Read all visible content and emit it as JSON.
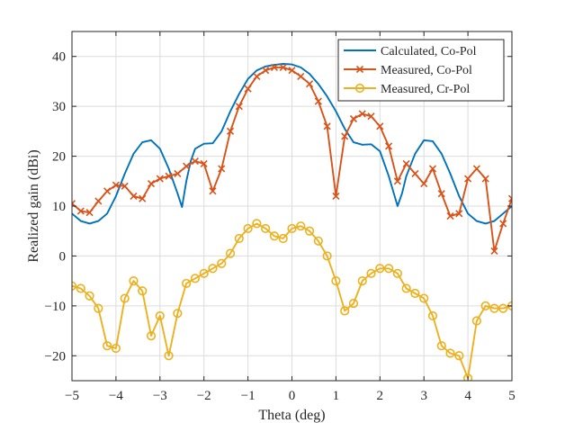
{
  "chart_data": {
    "type": "line",
    "title": "",
    "xlabel": "Theta (deg)",
    "ylabel": "Realized gain (dBi)",
    "xlim": [
      -5,
      5
    ],
    "ylim": [
      -25,
      45
    ],
    "xticks": [
      -5,
      -4,
      -3,
      -2,
      -1,
      0,
      1,
      2,
      3,
      4,
      5
    ],
    "yticks": [
      -20,
      -10,
      0,
      10,
      20,
      30,
      40
    ],
    "xtick_labels": [
      "−5",
      "−4",
      "−3",
      "−2",
      "−1",
      "0",
      "1",
      "2",
      "3",
      "4",
      "5"
    ],
    "ytick_labels": [
      "−20",
      "−10",
      "0",
      "10",
      "20",
      "30",
      "40"
    ],
    "grid": true,
    "legend_position": "top-right",
    "series": [
      {
        "name": "Calculated, Co-Pol",
        "color": "#0072BD",
        "marker": "none",
        "x": [
          -5.0,
          -4.8,
          -4.6,
          -4.4,
          -4.2,
          -4.0,
          -3.8,
          -3.6,
          -3.4,
          -3.2,
          -3.0,
          -2.8,
          -2.6,
          -2.5,
          -2.4,
          -2.3,
          -2.2,
          -2.0,
          -1.8,
          -1.6,
          -1.4,
          -1.2,
          -1.0,
          -0.8,
          -0.6,
          -0.4,
          -0.2,
          0.0,
          0.2,
          0.4,
          0.6,
          0.8,
          1.0,
          1.2,
          1.4,
          1.6,
          1.8,
          2.0,
          2.2,
          2.3,
          2.4,
          2.5,
          2.6,
          2.8,
          3.0,
          3.2,
          3.4,
          3.6,
          3.8,
          4.0,
          4.2,
          4.4,
          4.6,
          4.8,
          5.0
        ],
        "y": [
          8.5,
          7.0,
          6.5,
          7.0,
          8.5,
          12.0,
          16.5,
          20.5,
          22.8,
          23.2,
          21.5,
          17.5,
          12.5,
          9.8,
          15.0,
          19.0,
          21.5,
          22.5,
          22.6,
          25.0,
          29.0,
          32.5,
          35.5,
          37.2,
          38.0,
          38.3,
          38.5,
          38.4,
          37.8,
          36.5,
          34.5,
          32.0,
          29.0,
          25.5,
          22.8,
          22.3,
          22.4,
          21.0,
          16.0,
          13.0,
          10.0,
          12.5,
          16.0,
          20.5,
          23.2,
          23.0,
          20.5,
          16.5,
          12.0,
          8.5,
          7.0,
          6.5,
          7.0,
          8.5,
          10.0
        ]
      },
      {
        "name": "Measured, Co-Pol",
        "color": "#D95319",
        "marker": "x",
        "x": [
          -5.0,
          -4.8,
          -4.6,
          -4.4,
          -4.2,
          -4.0,
          -3.8,
          -3.6,
          -3.4,
          -3.2,
          -3.0,
          -2.8,
          -2.6,
          -2.4,
          -2.2,
          -2.0,
          -1.8,
          -1.6,
          -1.4,
          -1.2,
          -1.0,
          -0.8,
          -0.6,
          -0.4,
          -0.2,
          0.0,
          0.2,
          0.4,
          0.6,
          0.8,
          1.0,
          1.2,
          1.4,
          1.6,
          1.8,
          2.0,
          2.2,
          2.4,
          2.6,
          2.8,
          3.0,
          3.2,
          3.4,
          3.6,
          3.8,
          4.0,
          4.2,
          4.4,
          4.6,
          4.8,
          5.0
        ],
        "y": [
          10.5,
          9.0,
          8.7,
          11.0,
          13.0,
          14.2,
          14.0,
          12.0,
          11.5,
          14.5,
          15.5,
          16.0,
          16.5,
          18.0,
          19.0,
          18.5,
          13.0,
          17.5,
          25.0,
          30.0,
          33.5,
          36.0,
          37.2,
          37.8,
          37.8,
          37.2,
          36.0,
          34.5,
          31.0,
          26.0,
          12.0,
          24.0,
          27.5,
          28.5,
          28.0,
          26.0,
          22.0,
          15.0,
          18.5,
          16.5,
          14.5,
          17.5,
          12.5,
          8.0,
          8.5,
          15.5,
          17.5,
          15.5,
          1.0,
          6.5,
          11.5
        ]
      },
      {
        "name": "Measured, Cr-Pol",
        "color": "#EDB120",
        "marker": "o",
        "x": [
          -5.0,
          -4.8,
          -4.6,
          -4.4,
          -4.2,
          -4.0,
          -3.8,
          -3.6,
          -3.4,
          -3.2,
          -3.0,
          -2.8,
          -2.6,
          -2.4,
          -2.2,
          -2.0,
          -1.8,
          -1.6,
          -1.4,
          -1.2,
          -1.0,
          -0.8,
          -0.6,
          -0.4,
          -0.2,
          0.0,
          0.2,
          0.4,
          0.6,
          0.8,
          1.0,
          1.2,
          1.4,
          1.6,
          1.8,
          2.0,
          2.2,
          2.4,
          2.6,
          2.8,
          3.0,
          3.2,
          3.4,
          3.6,
          3.8,
          4.0,
          4.2,
          4.4,
          4.6,
          4.8,
          5.0
        ],
        "y": [
          -6.0,
          -6.5,
          -8.0,
          -10.5,
          -18.0,
          -18.5,
          -8.5,
          -5.0,
          -7.0,
          -16.0,
          -12.0,
          -20.0,
          -11.5,
          -5.5,
          -4.5,
          -3.5,
          -2.5,
          -1.5,
          0.5,
          3.5,
          5.5,
          6.5,
          5.5,
          4.0,
          3.5,
          5.5,
          6.0,
          5.0,
          3.0,
          0.0,
          -5.0,
          -11.0,
          -9.5,
          -5.0,
          -3.5,
          -2.5,
          -2.5,
          -3.5,
          -6.5,
          -7.5,
          -8.5,
          -12.0,
          -18.0,
          -19.5,
          -20.0,
          -24.5,
          -13.0,
          -10.0,
          -10.5,
          -10.5,
          -10.0
        ]
      }
    ]
  }
}
